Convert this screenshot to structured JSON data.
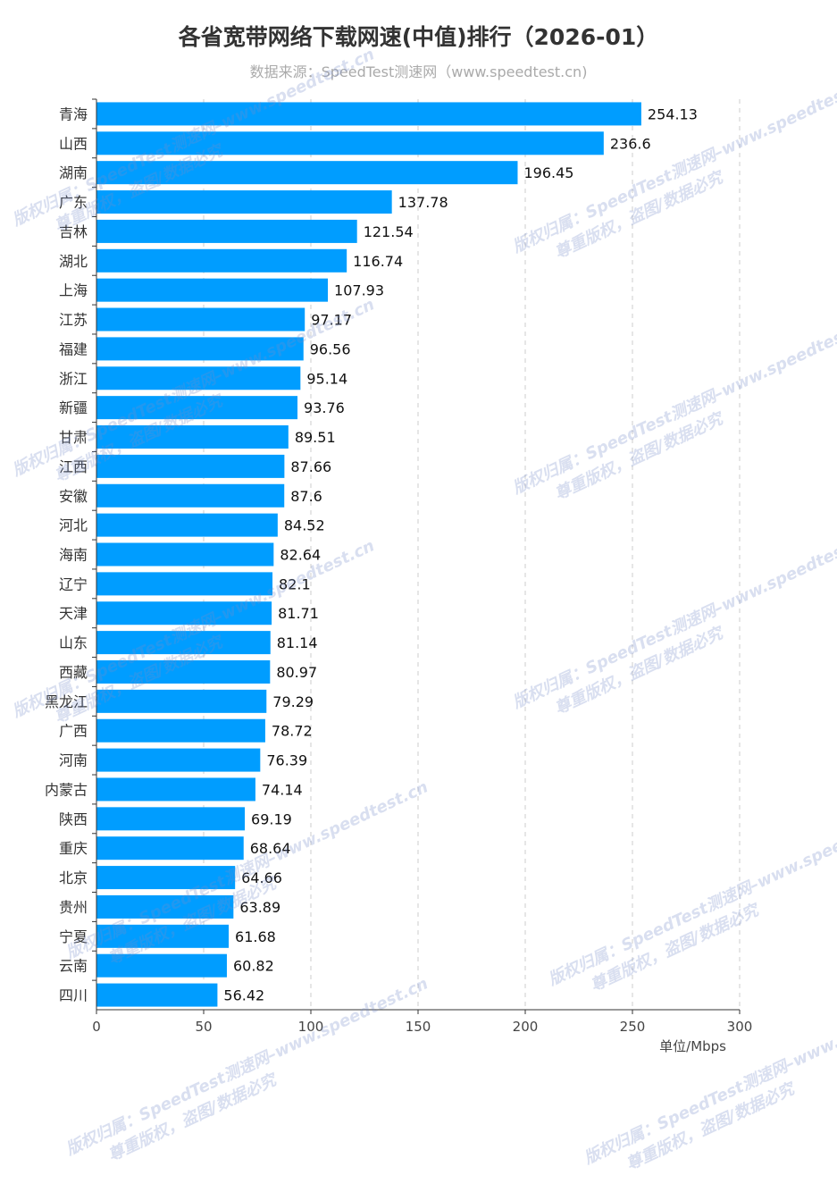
{
  "chart_data": {
    "type": "bar",
    "orientation": "horizontal",
    "title": "各省宽带网络下载网速(中值)排行（2026-01）",
    "subtitle": "数据来源：SpeedTest测速网（www.speedtest.cn)",
    "xlabel": "单位/Mbps",
    "ylabel": "",
    "xlim": [
      0,
      300
    ],
    "xticks": [
      0,
      50,
      100,
      150,
      200,
      250,
      300
    ],
    "grid": "vertical-dashed",
    "bar_color": "#009dff",
    "categories": [
      "青海",
      "山西",
      "湖南",
      "广东",
      "吉林",
      "湖北",
      "上海",
      "江苏",
      "福建",
      "浙江",
      "新疆",
      "甘肃",
      "江西",
      "安徽",
      "河北",
      "海南",
      "辽宁",
      "天津",
      "山东",
      "西藏",
      "黑龙江",
      "广西",
      "河南",
      "内蒙古",
      "陕西",
      "重庆",
      "北京",
      "贵州",
      "宁夏",
      "云南",
      "四川"
    ],
    "values": [
      254.13,
      236.6,
      196.45,
      137.78,
      121.54,
      116.74,
      107.93,
      97.17,
      96.56,
      95.14,
      93.76,
      89.51,
      87.66,
      87.6,
      84.52,
      82.64,
      82.1,
      81.71,
      81.14,
      80.97,
      79.29,
      78.72,
      76.39,
      74.14,
      69.19,
      68.64,
      64.66,
      63.89,
      61.68,
      60.82,
      56.42
    ]
  },
  "watermark": {
    "line1": "版权归属：SpeedTest测速网–www.speedtest.cn",
    "line2": "尊重版权，盗图/数据必究"
  }
}
